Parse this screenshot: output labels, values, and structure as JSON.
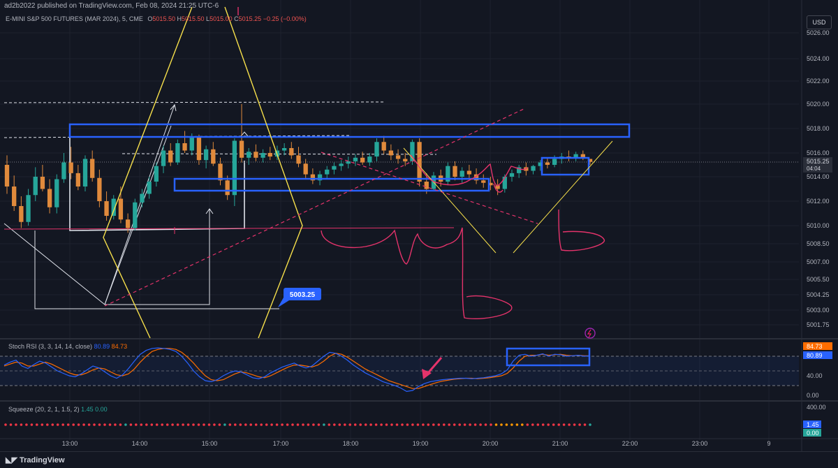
{
  "header": {
    "publisher_line": "ad2b2022 published on TradingView.com, Feb 08, 2024 21:25 UTC-6",
    "symbol": "E-MINI S&P 500 FUTURES (MAR 2024), 5, CME",
    "ohlc": {
      "open_label": "O",
      "open": "5015.50",
      "high_label": "H",
      "high": "5015.50",
      "low_label": "L",
      "low": "5015.00",
      "close_label": "C",
      "close": "5015.25",
      "change": "−0.25 (−0.00%)"
    },
    "currency": "USD"
  },
  "price_axis": {
    "ticks": [
      {
        "value": 5026.0,
        "label": "5026.00"
      },
      {
        "value": 5024.0,
        "label": "5024.00"
      },
      {
        "value": 5022.0,
        "label": "5022.00"
      },
      {
        "value": 5020.0,
        "label": "5020.00"
      },
      {
        "value": 5018.0,
        "label": "5018.00"
      },
      {
        "value": 5016.0,
        "label": "5016.00"
      },
      {
        "value": 5014.0,
        "label": "5014.00"
      },
      {
        "value": 5012.0,
        "label": "5012.00"
      },
      {
        "value": 5010.0,
        "label": "5010.00"
      },
      {
        "value": 5008.5,
        "label": "5008.50"
      },
      {
        "value": 5007.0,
        "label": "5007.00"
      },
      {
        "value": 5005.5,
        "label": "5005.50"
      },
      {
        "value": 5004.25,
        "label": "5004.25"
      },
      {
        "value": 5003.0,
        "label": "5003.00"
      },
      {
        "value": 5001.75,
        "label": "5001.75"
      }
    ],
    "last_price_label": "5015.25",
    "countdown": "04:04",
    "annotation_price_label": "5003.25"
  },
  "time_axis": {
    "ticks": [
      {
        "t": 0,
        "label": "13:00"
      },
      {
        "t": 1,
        "label": "14:00"
      },
      {
        "t": 2,
        "label": "15:00"
      },
      {
        "t": 3,
        "label": "17:00"
      },
      {
        "t": 4,
        "label": "18:00"
      },
      {
        "t": 5,
        "label": "19:00"
      },
      {
        "t": 6,
        "label": "20:00"
      },
      {
        "t": 7,
        "label": "21:00"
      },
      {
        "t": 8,
        "label": "22:00"
      },
      {
        "t": 9,
        "label": "23:00"
      },
      {
        "t": 10,
        "label": "9"
      }
    ]
  },
  "stoch_rsi": {
    "legend_name": "Stoch RSI (3, 3, 14, 14, close)",
    "k_value": "80.89",
    "d_value": "84.73",
    "axis_labels": [
      "40.00",
      "0.00"
    ],
    "k_color": "#2962ff",
    "d_color": "#ff6d00"
  },
  "squeeze": {
    "legend_name": "Squeeze (20, 2, 1, 1.5, 2)",
    "value1": "1.45",
    "value2": "0.00",
    "axis_label": "400.00"
  },
  "footer": {
    "brand": "TradingView"
  },
  "chart_data": {
    "type": "candlestick",
    "title": "E-MINI S&P 500 FUTURES (MAR 2024), 5, CME",
    "ylim": [
      5000.5,
      5027.0
    ],
    "candles": [
      {
        "o": 5015.0,
        "h": 5015.8,
        "l": 5012.6,
        "c": 5013.2
      },
      {
        "o": 5013.2,
        "h": 5014.1,
        "l": 5011.2,
        "c": 5011.6
      },
      {
        "o": 5011.6,
        "h": 5012.4,
        "l": 5009.8,
        "c": 5010.3
      },
      {
        "o": 5010.3,
        "h": 5013.0,
        "l": 5010.0,
        "c": 5012.5
      },
      {
        "o": 5012.5,
        "h": 5014.8,
        "l": 5012.0,
        "c": 5014.0
      },
      {
        "o": 5014.0,
        "h": 5015.0,
        "l": 5012.8,
        "c": 5013.0
      },
      {
        "o": 5013.0,
        "h": 5013.8,
        "l": 5011.0,
        "c": 5011.5
      },
      {
        "o": 5011.5,
        "h": 5014.2,
        "l": 5011.0,
        "c": 5013.8
      },
      {
        "o": 5013.8,
        "h": 5016.0,
        "l": 5013.5,
        "c": 5015.2
      },
      {
        "o": 5015.2,
        "h": 5016.5,
        "l": 5013.8,
        "c": 5014.3
      },
      {
        "o": 5014.3,
        "h": 5015.0,
        "l": 5012.9,
        "c": 5013.2
      },
      {
        "o": 5013.2,
        "h": 5015.8,
        "l": 5012.8,
        "c": 5015.5
      },
      {
        "o": 5015.5,
        "h": 5016.2,
        "l": 5013.6,
        "c": 5013.9
      },
      {
        "o": 5013.9,
        "h": 5014.6,
        "l": 5011.5,
        "c": 5012.0
      },
      {
        "o": 5012.0,
        "h": 5012.8,
        "l": 5010.4,
        "c": 5010.8
      },
      {
        "o": 5010.8,
        "h": 5012.5,
        "l": 5010.5,
        "c": 5012.2
      },
      {
        "o": 5012.2,
        "h": 5013.2,
        "l": 5010.2,
        "c": 5010.5
      },
      {
        "o": 5010.5,
        "h": 5011.0,
        "l": 5009.4,
        "c": 5009.8
      },
      {
        "o": 5009.8,
        "h": 5012.2,
        "l": 5009.6,
        "c": 5011.9
      },
      {
        "o": 5011.9,
        "h": 5013.0,
        "l": 5011.5,
        "c": 5012.6
      },
      {
        "o": 5012.6,
        "h": 5014.0,
        "l": 5012.2,
        "c": 5013.6
      },
      {
        "o": 5013.6,
        "h": 5015.2,
        "l": 5013.2,
        "c": 5014.9
      },
      {
        "o": 5014.9,
        "h": 5016.6,
        "l": 5014.3,
        "c": 5016.2
      },
      {
        "o": 5016.2,
        "h": 5016.8,
        "l": 5014.9,
        "c": 5015.2
      },
      {
        "o": 5015.2,
        "h": 5017.1,
        "l": 5015.0,
        "c": 5016.8
      },
      {
        "o": 5016.8,
        "h": 5017.8,
        "l": 5016.0,
        "c": 5016.2
      },
      {
        "o": 5016.2,
        "h": 5017.6,
        "l": 5015.8,
        "c": 5017.3
      },
      {
        "o": 5017.3,
        "h": 5017.5,
        "l": 5015.0,
        "c": 5015.4
      },
      {
        "o": 5015.4,
        "h": 5016.6,
        "l": 5014.7,
        "c": 5016.3
      },
      {
        "o": 5016.3,
        "h": 5016.9,
        "l": 5014.9,
        "c": 5015.1
      },
      {
        "o": 5015.1,
        "h": 5015.6,
        "l": 5013.3,
        "c": 5013.7
      },
      {
        "o": 5013.7,
        "h": 5014.1,
        "l": 5012.1,
        "c": 5012.5
      },
      {
        "o": 5012.5,
        "h": 5017.2,
        "l": 5011.6,
        "c": 5017.0
      },
      {
        "o": 5017.0,
        "h": 5020.0,
        "l": 5015.2,
        "c": 5015.6
      },
      {
        "o": 5015.6,
        "h": 5016.4,
        "l": 5015.0,
        "c": 5016.1
      },
      {
        "o": 5016.1,
        "h": 5016.7,
        "l": 5015.3,
        "c": 5015.6
      },
      {
        "o": 5015.6,
        "h": 5016.3,
        "l": 5015.2,
        "c": 5016.0
      },
      {
        "o": 5016.0,
        "h": 5016.5,
        "l": 5015.4,
        "c": 5015.7
      },
      {
        "o": 5015.7,
        "h": 5016.6,
        "l": 5015.4,
        "c": 5016.2
      },
      {
        "o": 5016.2,
        "h": 5016.8,
        "l": 5015.8,
        "c": 5016.4
      },
      {
        "o": 5016.4,
        "h": 5016.9,
        "l": 5015.5,
        "c": 5015.8
      },
      {
        "o": 5015.8,
        "h": 5016.5,
        "l": 5014.8,
        "c": 5015.1
      },
      {
        "o": 5015.1,
        "h": 5015.5,
        "l": 5013.9,
        "c": 5014.2
      },
      {
        "o": 5014.2,
        "h": 5014.7,
        "l": 5013.4,
        "c": 5013.7
      },
      {
        "o": 5013.7,
        "h": 5014.5,
        "l": 5013.3,
        "c": 5014.2
      },
      {
        "o": 5014.2,
        "h": 5014.9,
        "l": 5013.8,
        "c": 5014.6
      },
      {
        "o": 5014.6,
        "h": 5015.2,
        "l": 5014.2,
        "c": 5014.9
      },
      {
        "o": 5014.9,
        "h": 5015.4,
        "l": 5014.5,
        "c": 5015.1
      },
      {
        "o": 5015.1,
        "h": 5015.7,
        "l": 5014.7,
        "c": 5015.3
      },
      {
        "o": 5015.3,
        "h": 5015.9,
        "l": 5014.9,
        "c": 5015.6
      },
      {
        "o": 5015.6,
        "h": 5016.1,
        "l": 5015.0,
        "c": 5015.2
      },
      {
        "o": 5015.2,
        "h": 5016.0,
        "l": 5014.9,
        "c": 5015.7
      },
      {
        "o": 5015.7,
        "h": 5017.2,
        "l": 5015.3,
        "c": 5016.9
      },
      {
        "o": 5016.9,
        "h": 5017.4,
        "l": 5015.9,
        "c": 5016.2
      },
      {
        "o": 5016.2,
        "h": 5016.7,
        "l": 5015.4,
        "c": 5015.8
      },
      {
        "o": 5015.8,
        "h": 5016.3,
        "l": 5015.1,
        "c": 5015.5
      },
      {
        "o": 5015.5,
        "h": 5016.0,
        "l": 5014.9,
        "c": 5015.3
      },
      {
        "o": 5015.3,
        "h": 5017.1,
        "l": 5015.0,
        "c": 5016.9
      },
      {
        "o": 5016.9,
        "h": 5017.2,
        "l": 5013.2,
        "c": 5013.6
      },
      {
        "o": 5013.6,
        "h": 5014.3,
        "l": 5012.6,
        "c": 5013.0
      },
      {
        "o": 5013.0,
        "h": 5014.4,
        "l": 5012.8,
        "c": 5014.1
      },
      {
        "o": 5014.1,
        "h": 5014.6,
        "l": 5013.2,
        "c": 5013.6
      },
      {
        "o": 5013.6,
        "h": 5015.2,
        "l": 5013.3,
        "c": 5014.9
      },
      {
        "o": 5014.9,
        "h": 5015.3,
        "l": 5013.7,
        "c": 5014.0
      },
      {
        "o": 5014.0,
        "h": 5014.8,
        "l": 5013.5,
        "c": 5014.5
      },
      {
        "o": 5014.5,
        "h": 5015.0,
        "l": 5013.9,
        "c": 5014.2
      },
      {
        "o": 5014.2,
        "h": 5014.7,
        "l": 5013.4,
        "c": 5013.7
      },
      {
        "o": 5013.7,
        "h": 5014.2,
        "l": 5013.1,
        "c": 5013.5
      },
      {
        "o": 5013.5,
        "h": 5014.0,
        "l": 5012.9,
        "c": 5013.3
      },
      {
        "o": 5013.3,
        "h": 5013.8,
        "l": 5012.5,
        "c": 5013.0
      },
      {
        "o": 5013.0,
        "h": 5014.2,
        "l": 5012.7,
        "c": 5014.0
      },
      {
        "o": 5014.0,
        "h": 5014.6,
        "l": 5013.6,
        "c": 5014.3
      },
      {
        "o": 5014.3,
        "h": 5015.0,
        "l": 5013.9,
        "c": 5014.8
      },
      {
        "o": 5014.8,
        "h": 5015.2,
        "l": 5014.1,
        "c": 5014.5
      },
      {
        "o": 5014.5,
        "h": 5015.0,
        "l": 5014.2,
        "c": 5014.9
      },
      {
        "o": 5014.9,
        "h": 5015.4,
        "l": 5014.5,
        "c": 5015.2
      },
      {
        "o": 5015.2,
        "h": 5015.6,
        "l": 5014.7,
        "c": 5015.0
      },
      {
        "o": 5015.0,
        "h": 5015.8,
        "l": 5014.8,
        "c": 5015.5
      },
      {
        "o": 5015.5,
        "h": 5016.0,
        "l": 5015.1,
        "c": 5015.7
      },
      {
        "o": 5015.7,
        "h": 5016.2,
        "l": 5015.3,
        "c": 5015.6
      },
      {
        "o": 5015.6,
        "h": 5016.1,
        "l": 5015.3,
        "c": 5015.9
      },
      {
        "o": 5015.9,
        "h": 5016.2,
        "l": 5015.4,
        "c": 5015.6
      },
      {
        "o": 5015.5,
        "h": 5015.5,
        "l": 5015.0,
        "c": 5015.25
      }
    ],
    "horizontal_levels": [
      5018.25,
      5017.5,
      5016.0,
      5009.5
    ],
    "annotation_level": 5003.25,
    "stoch_k": [
      62,
      68,
      72,
      60,
      55,
      63,
      70,
      66,
      58,
      50,
      45,
      40,
      38,
      44,
      52,
      60,
      56,
      48,
      40,
      35,
      42,
      55,
      70,
      84,
      92,
      96,
      97,
      96,
      94,
      90,
      80,
      66,
      50,
      38,
      30,
      28,
      32,
      40,
      46,
      50,
      48,
      42,
      36,
      34,
      38,
      46,
      52,
      58,
      62,
      66,
      60,
      56,
      60,
      70,
      80,
      88,
      86,
      80,
      72,
      62,
      54,
      46,
      40,
      34,
      28,
      24,
      20,
      15,
      8,
      10,
      18,
      24,
      28,
      30,
      32,
      33,
      34,
      35,
      35,
      34,
      35,
      36,
      38,
      40,
      44,
      52,
      70,
      82,
      84,
      80,
      82,
      85,
      80,
      84,
      83,
      80,
      81,
      82,
      80,
      81
    ],
    "stoch_d": [
      60,
      64,
      68,
      66,
      60,
      60,
      64,
      68,
      64,
      58,
      52,
      46,
      42,
      42,
      46,
      52,
      56,
      54,
      48,
      42,
      40,
      44,
      54,
      68,
      80,
      90,
      94,
      96,
      96,
      94,
      88,
      78,
      66,
      52,
      40,
      32,
      30,
      32,
      38,
      44,
      48,
      46,
      42,
      38,
      36,
      40,
      46,
      52,
      58,
      62,
      62,
      60,
      58,
      62,
      70,
      80,
      86,
      84,
      78,
      70,
      62,
      54,
      48,
      42,
      36,
      30,
      26,
      22,
      18,
      14,
      14,
      18,
      22,
      26,
      29,
      31,
      33,
      34,
      35,
      35,
      34,
      35,
      36,
      38,
      40,
      45,
      56,
      70,
      80,
      82,
      82,
      84,
      82,
      83,
      84,
      82,
      81,
      82,
      81,
      81
    ],
    "stoch_overbought": 80,
    "stoch_oversold": 20,
    "squeeze_dots": "rrrrrrrrrrrrrrrrrrrrrrrgrrrrrrrrrrrrrrrrrrgrrrrrrrrrrrrrrrrrrgrrrrrrrrrrrrrrrrrrrrrrrrrrrrrrrroooooorrrrrrrrrrrrg",
    "colors": {
      "up": "#26a69a",
      "down": "#e08a3c",
      "drawing_blue": "#2962ff",
      "drawing_yellow": "#f7e04b",
      "drawing_pink": "#e5336b",
      "drawing_white": "#e0e3eb"
    }
  }
}
